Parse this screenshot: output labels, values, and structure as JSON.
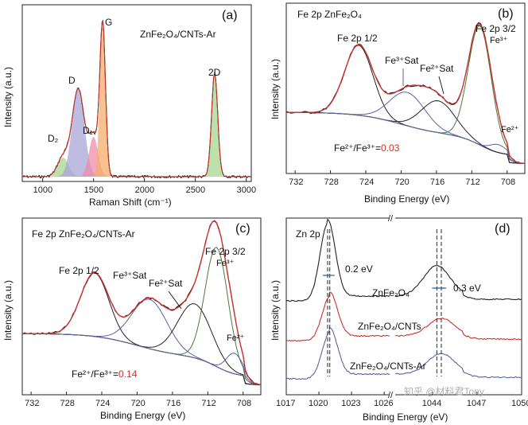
{
  "panels": {
    "a": {
      "label": "(a)",
      "sample": "ZnFe₂O₄/CNTs-Ar",
      "xlabel": "Raman Shift (cm⁻¹)",
      "ylabel": "Intensity (a.u.)",
      "xticks": [
        "1000",
        "1500",
        "2000",
        "2500",
        "3000"
      ],
      "peaks": [
        "D₂",
        "D",
        "D₁",
        "G",
        "2D"
      ]
    },
    "b": {
      "label": "(b)",
      "title": "Fe 2p ZnFe₂O₄",
      "xlabel": "Binding Energy (eV)",
      "ylabel": "Intensity (a.u.)",
      "xticks": [
        "732",
        "728",
        "724",
        "720",
        "716",
        "712",
        "708"
      ],
      "annotations": [
        "Fe 2p 1/2",
        "Fe³⁺Sat",
        "Fe²⁺Sat",
        "Fe 2p 3/2",
        "Fe³⁺",
        "Fe²⁺"
      ],
      "ratio_label": "Fe²⁺/Fe³⁺=",
      "ratio_value": "0.03"
    },
    "c": {
      "label": "(c)",
      "title": "Fe 2p ZnFe₂O₄/CNTs-Ar",
      "xlabel": "Binding Energy (eV)",
      "ylabel": "Intensity (a.u.)",
      "xticks": [
        "732",
        "728",
        "724",
        "720",
        "716",
        "712",
        "708"
      ],
      "annotations": [
        "Fe 2p 1/2",
        "Fe³⁺Sat",
        "Fe²⁺Sat",
        "Fe 2p 3/2",
        "Fe³⁺",
        "Fe²⁺"
      ],
      "ratio_label": "Fe²⁺/Fe³⁺=",
      "ratio_value": "0.14"
    },
    "d": {
      "label": "(d)",
      "title": "Zn 2p",
      "xlabel": "Binding Energy (eV)",
      "ylabel": "Intensity (a.u.)",
      "xticks": [
        "1017",
        "1020",
        "1023",
        "1026",
        "1044",
        "1047",
        "1050"
      ],
      "shift1": "0.2 eV",
      "shift2": "0.3 eV",
      "samples": [
        "ZnFe₂O₄",
        "ZnFe₂O₄/CNTs",
        "ZnFe₂O₄/CNTs-Ar"
      ]
    }
  },
  "watermark": "知乎 @材料君Tony",
  "colors": {
    "data": "#222222",
    "envelope": "#d0312d",
    "fe3_fill": "#4a7a3a",
    "blue_curve": "#5a63a8",
    "raman_d": "#a9a5d8",
    "raman_g": "#f5ad6b",
    "raman_d1": "#f08cab",
    "raman_2d": "#a8d58f",
    "raman_d2": "#a8d58f"
  },
  "chart_data": [
    {
      "panel": "a",
      "type": "line",
      "title": "ZnFe₂O₄/CNTs-Ar",
      "xlabel": "Raman Shift (cm⁻¹)",
      "ylabel": "Intensity (a.u.)",
      "xlim": [
        800,
        3050
      ],
      "series": [
        {
          "name": "D₂",
          "center": 1200,
          "height": 0.12
        },
        {
          "name": "D",
          "center": 1350,
          "height": 0.55
        },
        {
          "name": "D₁",
          "center": 1500,
          "height": 0.25
        },
        {
          "name": "G",
          "center": 1590,
          "height": 0.95
        },
        {
          "name": "2D",
          "center": 2690,
          "height": 0.65
        }
      ]
    },
    {
      "panel": "b",
      "type": "line",
      "title": "Fe 2p ZnFe₂O₄",
      "xlabel": "Binding Energy (eV)",
      "xlim": [
        733,
        706
      ],
      "series": [
        {
          "name": "Fe 2p 1/2",
          "center": 724.8
        },
        {
          "name": "Fe³⁺Sat",
          "center": 719.3
        },
        {
          "name": "Fe²⁺Sat",
          "center": 715.8
        },
        {
          "name": "Fe 2p 3/2 (Fe³⁺)",
          "center": 711.1
        },
        {
          "name": "Fe²⁺",
          "center": 709.0
        }
      ],
      "ratio_fe2_fe3": 0.03
    },
    {
      "panel": "c",
      "type": "line",
      "title": "Fe 2p ZnFe₂O₄/CNTs-Ar",
      "xlabel": "Binding Energy (eV)",
      "xlim": [
        733,
        706
      ],
      "series": [
        {
          "name": "Fe 2p 1/2",
          "center": 724.8
        },
        {
          "name": "Fe³⁺Sat",
          "center": 718.6
        },
        {
          "name": "Fe²⁺Sat",
          "center": 713.5
        },
        {
          "name": "Fe 2p 3/2 (Fe³⁺)",
          "center": 711.0
        },
        {
          "name": "Fe²⁺",
          "center": 709.0
        }
      ],
      "ratio_fe2_fe3": 0.14
    },
    {
      "panel": "d",
      "type": "line",
      "title": "Zn 2p",
      "xlabel": "Binding Energy (eV)",
      "series": [
        {
          "name": "ZnFe₂O₄",
          "zn2p32": 1020.8,
          "zn2p12": 1044.3
        },
        {
          "name": "ZnFe₂O₄/CNTs",
          "zn2p32": 1021.0,
          "zn2p12": 1044.6
        },
        {
          "name": "ZnFe₂O₄/CNTs-Ar",
          "zn2p32": 1021.0,
          "zn2p12": 1044.6
        }
      ],
      "shift_2p32_eV": 0.2,
      "shift_2p12_eV": 0.3
    }
  ]
}
